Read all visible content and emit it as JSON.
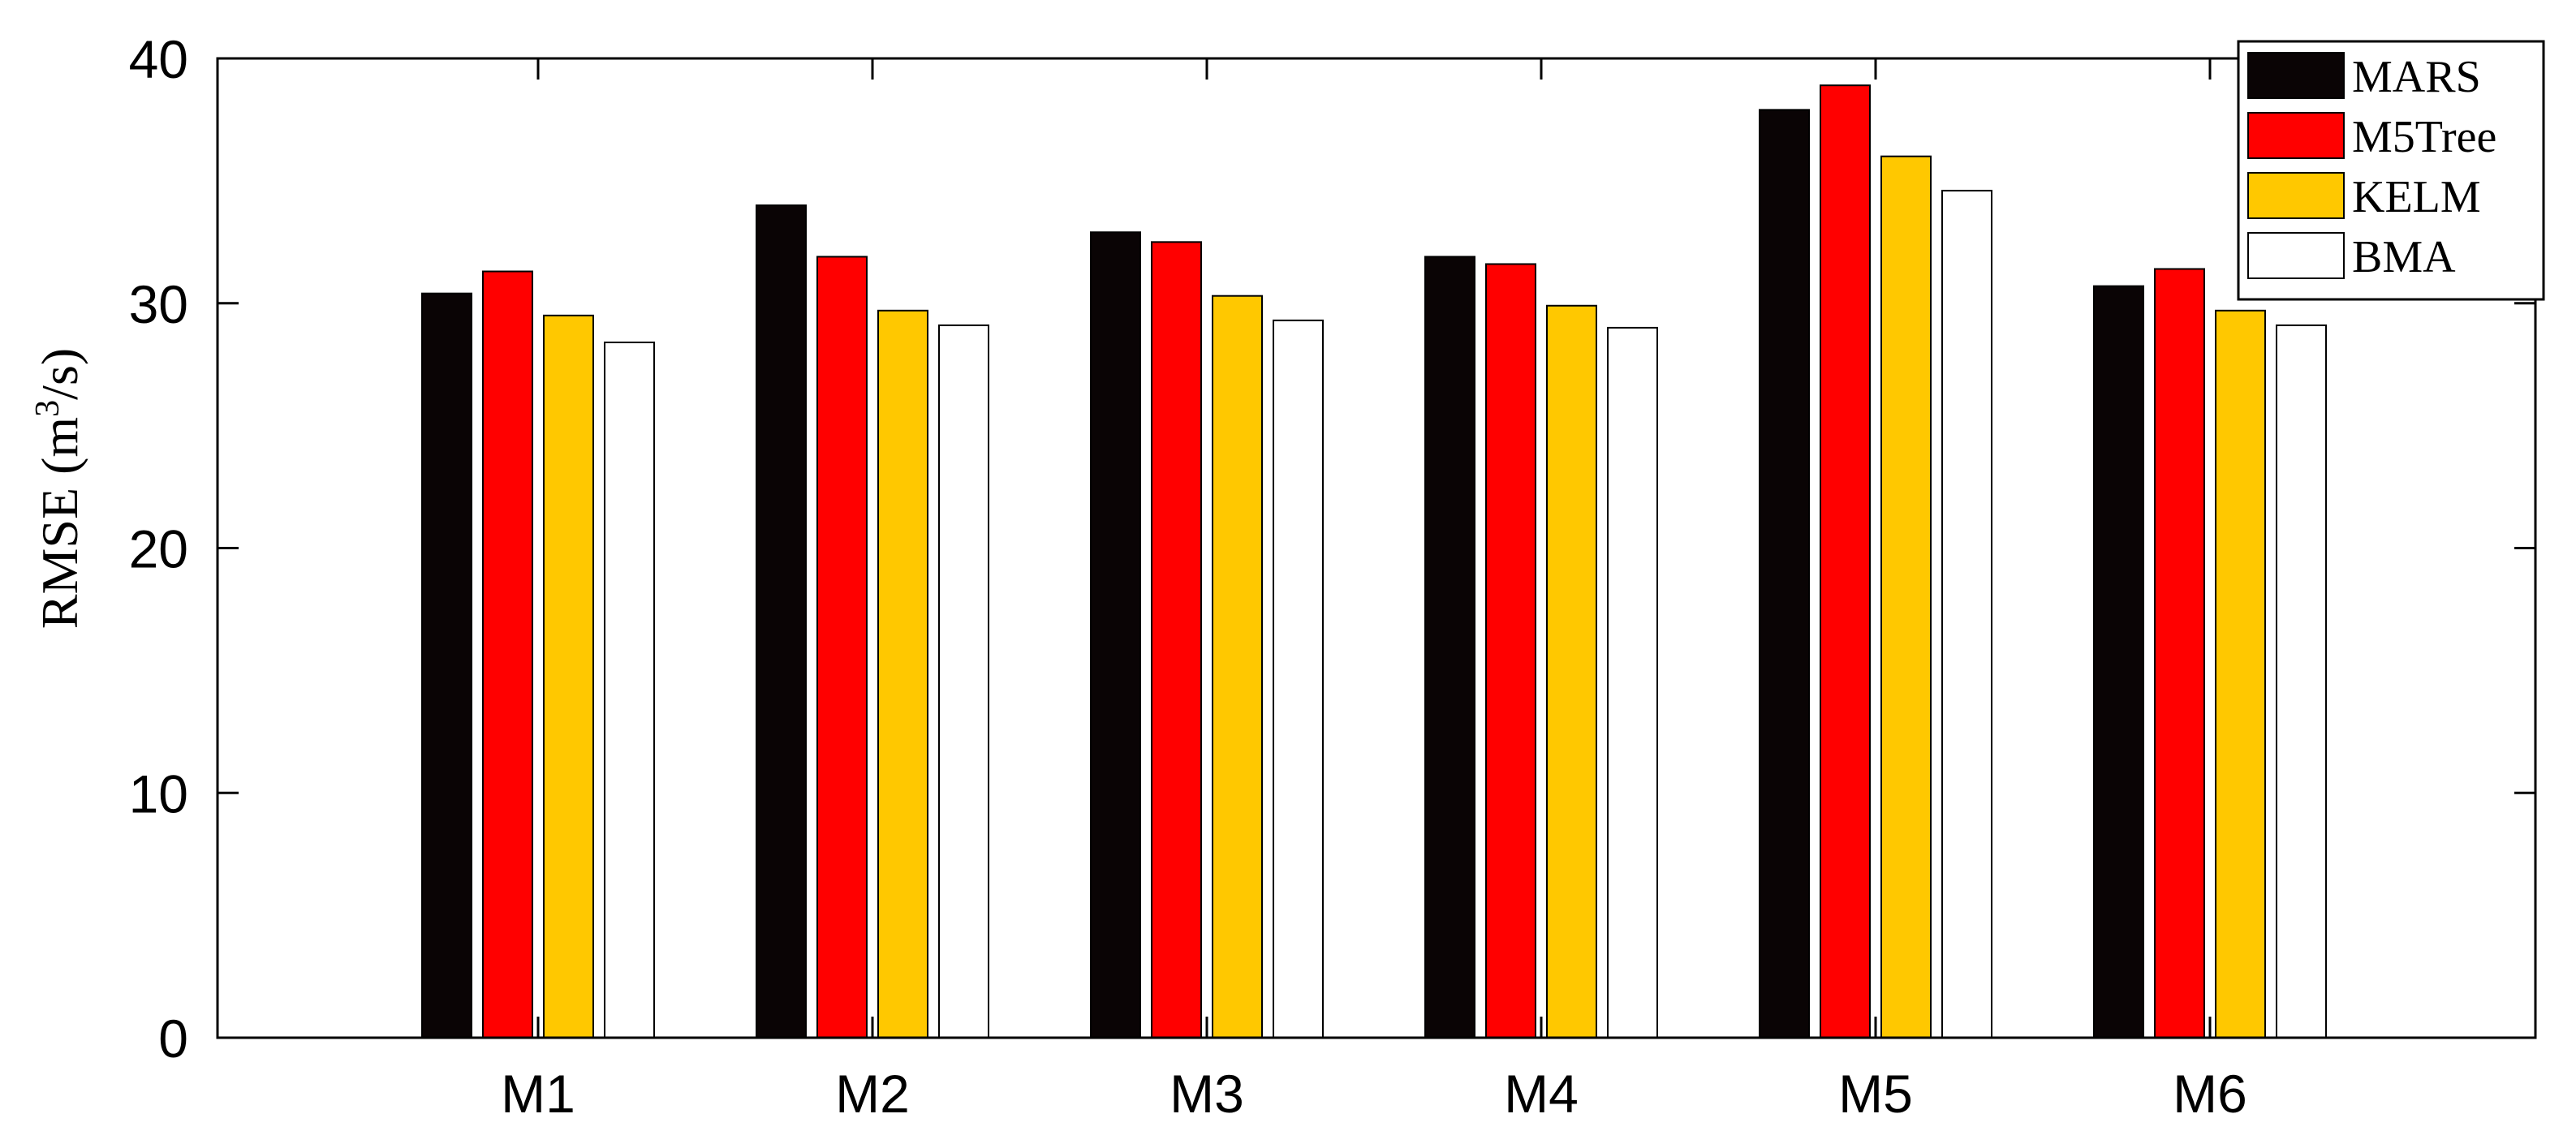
{
  "chart_data": {
    "type": "bar",
    "title": "",
    "xlabel": "",
    "ylabel": {
      "main": "RMSE (m",
      "superscript": "3",
      "suffix": "/s)"
    },
    "ylim": [
      0,
      40
    ],
    "yticks": [
      0,
      10,
      20,
      30,
      40
    ],
    "grid": false,
    "legend_position": "top-right",
    "categories": [
      "M1",
      "M2",
      "M3",
      "M4",
      "M5",
      "M6"
    ],
    "series": [
      {
        "name": "MARS",
        "color": "#0a0405",
        "values": [
          30.4,
          34.0,
          32.9,
          31.9,
          37.9,
          30.7
        ]
      },
      {
        "name": "M5Tree",
        "color": "#ff0000",
        "values": [
          31.3,
          31.9,
          32.5,
          31.6,
          38.9,
          31.4
        ]
      },
      {
        "name": "KELM",
        "color": "#ffc800",
        "values": [
          29.5,
          29.7,
          30.3,
          29.9,
          36.0,
          29.7
        ]
      },
      {
        "name": "BMA",
        "color": "#ffffff",
        "values": [
          28.4,
          29.1,
          29.3,
          29.0,
          34.6,
          29.1
        ]
      }
    ]
  }
}
